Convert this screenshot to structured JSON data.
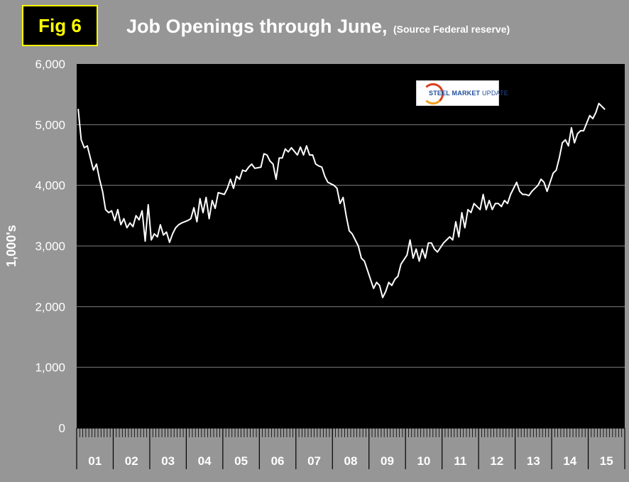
{
  "figure_label": "Fig 6",
  "title": "Job Openings through June,",
  "subtitle": "(Source Federal reserve)",
  "logo": {
    "name": "steel-market-update-logo",
    "text_bold": "STEEL MARKET",
    "text_light": "UPDATE"
  },
  "colors": {
    "background": "#969696",
    "plot": "#000000",
    "line": "#ffffff",
    "grid": "#7f7f7f",
    "badge_text": "#ffff00"
  },
  "chart_data": {
    "type": "line",
    "title": "Job Openings through June,",
    "subtitle": "(Source Federal reserve)",
    "xlabel": "",
    "ylabel": "1,000's",
    "ylim": [
      0,
      6000
    ],
    "yticks": [
      0,
      1000,
      2000,
      3000,
      4000,
      5000,
      6000
    ],
    "ytick_labels": [
      "0",
      "1,000",
      "2,000",
      "3,000",
      "4,000",
      "5,000",
      "6,000"
    ],
    "categories": [
      "01",
      "02",
      "03",
      "04",
      "05",
      "06",
      "07",
      "08",
      "09",
      "10",
      "11",
      "12",
      "13",
      "14",
      "15"
    ],
    "grid": "horizontal",
    "legend": "none",
    "series": [
      {
        "anchors": [
          [
            "2001-01",
            5260
          ],
          [
            "2001-02",
            4750
          ],
          [
            "2001-03",
            4620
          ],
          [
            "2001-04",
            4650
          ],
          [
            "2001-05",
            4450
          ],
          [
            "2001-06",
            4250
          ],
          [
            "2001-07",
            4350
          ],
          [
            "2001-08",
            4100
          ],
          [
            "2001-09",
            3900
          ],
          [
            "2001-10",
            3600
          ],
          [
            "2001-11",
            3550
          ],
          [
            "2001-12",
            3580
          ],
          [
            "2002-01",
            3420
          ],
          [
            "2002-02",
            3600
          ],
          [
            "2002-03",
            3350
          ],
          [
            "2002-04",
            3450
          ],
          [
            "2002-05",
            3300
          ],
          [
            "2002-06",
            3380
          ],
          [
            "2002-07",
            3320
          ],
          [
            "2002-08",
            3500
          ],
          [
            "2002-09",
            3430
          ],
          [
            "2002-10",
            3580
          ],
          [
            "2002-11",
            3080
          ],
          [
            "2002-12",
            3680
          ],
          [
            "2003-01",
            3100
          ],
          [
            "2003-02",
            3200
          ],
          [
            "2003-03",
            3150
          ],
          [
            "2003-04",
            3350
          ],
          [
            "2003-05",
            3180
          ],
          [
            "2003-06",
            3230
          ],
          [
            "2003-07",
            3060
          ],
          [
            "2003-08",
            3200
          ],
          [
            "2003-09",
            3300
          ],
          [
            "2003-10",
            3350
          ],
          [
            "2003-11",
            3380
          ],
          [
            "2004-01",
            3420
          ],
          [
            "2004-02",
            3450
          ],
          [
            "2004-03",
            3630
          ],
          [
            "2004-04",
            3400
          ],
          [
            "2004-05",
            3780
          ],
          [
            "2004-06",
            3550
          ],
          [
            "2004-07",
            3800
          ],
          [
            "2004-08",
            3450
          ],
          [
            "2004-09",
            3750
          ],
          [
            "2004-10",
            3620
          ],
          [
            "2004-11",
            3880
          ],
          [
            "2005-01",
            3850
          ],
          [
            "2005-02",
            3950
          ],
          [
            "2005-03",
            4100
          ],
          [
            "2005-04",
            3950
          ],
          [
            "2005-05",
            4150
          ],
          [
            "2005-06",
            4100
          ],
          [
            "2005-07",
            4250
          ],
          [
            "2005-08",
            4230
          ],
          [
            "2005-09",
            4300
          ],
          [
            "2005-10",
            4350
          ],
          [
            "2005-11",
            4280
          ],
          [
            "2006-01",
            4300
          ],
          [
            "2006-02",
            4520
          ],
          [
            "2006-03",
            4500
          ],
          [
            "2006-04",
            4400
          ],
          [
            "2006-05",
            4350
          ],
          [
            "2006-06",
            4100
          ],
          [
            "2006-07",
            4450
          ],
          [
            "2006-08",
            4450
          ],
          [
            "2006-09",
            4600
          ],
          [
            "2006-10",
            4550
          ],
          [
            "2006-11",
            4620
          ],
          [
            "2007-01",
            4500
          ],
          [
            "2007-02",
            4630
          ],
          [
            "2007-03",
            4500
          ],
          [
            "2007-04",
            4650
          ],
          [
            "2007-05",
            4500
          ],
          [
            "2007-06",
            4500
          ],
          [
            "2007-07",
            4350
          ],
          [
            "2007-08",
            4320
          ],
          [
            "2007-09",
            4300
          ],
          [
            "2007-10",
            4150
          ],
          [
            "2007-11",
            4050
          ],
          [
            "2008-01",
            4000
          ],
          [
            "2008-02",
            3950
          ],
          [
            "2008-03",
            3700
          ],
          [
            "2008-04",
            3800
          ],
          [
            "2008-05",
            3500
          ],
          [
            "2008-06",
            3250
          ],
          [
            "2008-07",
            3200
          ],
          [
            "2008-08",
            3100
          ],
          [
            "2008-09",
            3000
          ],
          [
            "2008-10",
            2800
          ],
          [
            "2008-11",
            2750
          ],
          [
            "2009-01",
            2450
          ],
          [
            "2009-02",
            2300
          ],
          [
            "2009-03",
            2400
          ],
          [
            "2009-04",
            2350
          ],
          [
            "2009-05",
            2150
          ],
          [
            "2009-06",
            2250
          ],
          [
            "2009-07",
            2400
          ],
          [
            "2009-08",
            2350
          ],
          [
            "2009-09",
            2450
          ],
          [
            "2009-10",
            2500
          ],
          [
            "2009-11",
            2700
          ],
          [
            "2010-01",
            2850
          ],
          [
            "2010-02",
            3100
          ],
          [
            "2010-03",
            2800
          ],
          [
            "2010-04",
            2950
          ],
          [
            "2010-05",
            2750
          ],
          [
            "2010-06",
            2950
          ],
          [
            "2010-07",
            2800
          ],
          [
            "2010-08",
            3050
          ],
          [
            "2010-09",
            3050
          ],
          [
            "2010-10",
            2950
          ],
          [
            "2010-11",
            2900
          ],
          [
            "2011-01",
            3050
          ],
          [
            "2011-02",
            3100
          ],
          [
            "2011-03",
            3150
          ],
          [
            "2011-04",
            3100
          ],
          [
            "2011-05",
            3400
          ],
          [
            "2011-06",
            3150
          ],
          [
            "2011-07",
            3550
          ],
          [
            "2011-08",
            3300
          ],
          [
            "2011-09",
            3600
          ],
          [
            "2011-10",
            3550
          ],
          [
            "2011-11",
            3700
          ],
          [
            "2012-01",
            3600
          ],
          [
            "2012-02",
            3850
          ],
          [
            "2012-03",
            3600
          ],
          [
            "2012-04",
            3750
          ],
          [
            "2012-05",
            3600
          ],
          [
            "2012-06",
            3700
          ],
          [
            "2012-07",
            3700
          ],
          [
            "2012-08",
            3650
          ],
          [
            "2012-09",
            3750
          ],
          [
            "2012-10",
            3700
          ],
          [
            "2012-11",
            3850
          ],
          [
            "2013-01",
            4050
          ],
          [
            "2013-02",
            3900
          ],
          [
            "2013-03",
            3850
          ],
          [
            "2013-04",
            3850
          ],
          [
            "2013-05",
            3830
          ],
          [
            "2013-06",
            3900
          ],
          [
            "2013-07",
            3950
          ],
          [
            "2013-08",
            4000
          ],
          [
            "2013-09",
            4100
          ],
          [
            "2013-10",
            4050
          ],
          [
            "2013-11",
            3900
          ],
          [
            "2014-01",
            4200
          ],
          [
            "2014-02",
            4250
          ],
          [
            "2014-03",
            4450
          ],
          [
            "2014-04",
            4700
          ],
          [
            "2014-05",
            4750
          ],
          [
            "2014-06",
            4650
          ],
          [
            "2014-07",
            4950
          ],
          [
            "2014-08",
            4700
          ],
          [
            "2014-09",
            4850
          ],
          [
            "2014-10",
            4900
          ],
          [
            "2014-11",
            4900
          ],
          [
            "2015-01",
            5150
          ],
          [
            "2015-02",
            5100
          ],
          [
            "2015-03",
            5200
          ],
          [
            "2015-04",
            5350
          ],
          [
            "2015-05",
            5300
          ],
          [
            "2015-06",
            5250
          ]
        ]
      }
    ]
  }
}
